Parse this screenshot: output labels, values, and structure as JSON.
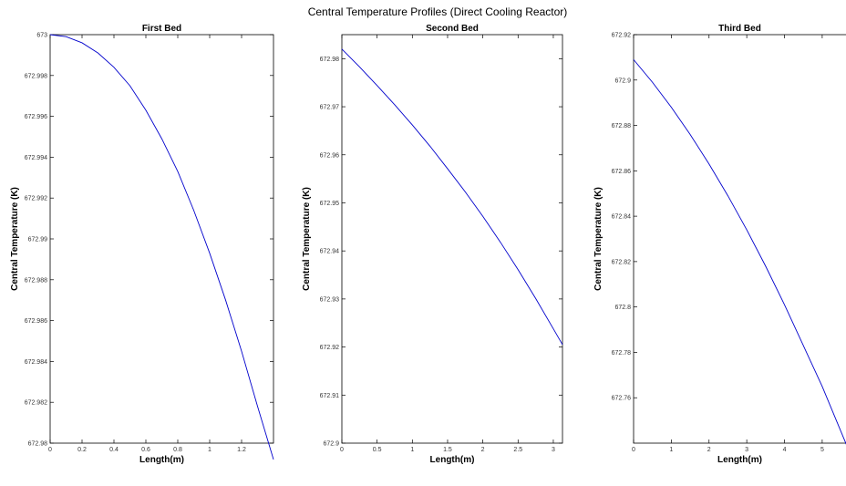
{
  "figure": {
    "title": "Central Temperature Profiles (Direct Cooling Reactor)"
  },
  "chart_data": [
    {
      "type": "line",
      "title": "First Bed",
      "xlabel": "Length(m)",
      "ylabel": "Central Temperature (K)",
      "xlim": [
        0,
        1.4
      ],
      "ylim": [
        672.98,
        673
      ],
      "x_ticks": [
        0,
        0.2,
        0.4,
        0.6,
        0.8,
        1,
        1.2
      ],
      "x_tick_labels": [
        "0",
        "0.2",
        "0.4",
        "0.6",
        "0.8",
        "1",
        "1.2"
      ],
      "y_ticks": [
        672.98,
        672.982,
        672.984,
        672.986,
        672.988,
        672.99,
        672.992,
        672.994,
        672.996,
        672.998,
        673
      ],
      "y_tick_labels": [
        "672.98",
        "672.982",
        "672.984",
        "672.986",
        "672.988",
        "672.99",
        "672.992",
        "672.994",
        "672.996",
        "672.998",
        "673"
      ],
      "grid": false,
      "line_color": "#0000cc",
      "series": [
        {
          "x": [
            0,
            0.1,
            0.2,
            0.3,
            0.4,
            0.5,
            0.6,
            0.7,
            0.8,
            0.9,
            1.0,
            1.1,
            1.2,
            1.3,
            1.4
          ],
          "y": [
            673.0,
            672.9999,
            672.9996,
            672.9991,
            672.9984,
            672.9975,
            672.9963,
            672.9949,
            672.9933,
            672.9914,
            672.9893,
            672.987,
            672.9845,
            672.9818,
            672.9792
          ]
        }
      ]
    },
    {
      "type": "line",
      "title": "Second Bed",
      "xlabel": "Length(m)",
      "ylabel": "Central Temperature (K)",
      "xlim": [
        0,
        3.13
      ],
      "ylim": [
        672.9,
        672.985
      ],
      "x_ticks": [
        0,
        0.5,
        1,
        1.5,
        2,
        2.5,
        3
      ],
      "x_tick_labels": [
        "0",
        "0.5",
        "1",
        "1.5",
        "2",
        "2.5",
        "3"
      ],
      "y_ticks": [
        672.9,
        672.91,
        672.92,
        672.93,
        672.94,
        672.95,
        672.96,
        672.97,
        672.98
      ],
      "y_tick_labels": [
        "672.9",
        "672.91",
        "672.92",
        "672.93",
        "672.94",
        "672.95",
        "672.96",
        "672.97",
        "672.98"
      ],
      "grid": false,
      "line_color": "#0000cc",
      "series": [
        {
          "x": [
            0,
            0.25,
            0.5,
            0.75,
            1.0,
            1.25,
            1.5,
            1.75,
            2.0,
            2.25,
            2.5,
            2.75,
            3.0,
            3.13
          ],
          "y": [
            672.982,
            672.9783,
            672.9744,
            672.9704,
            672.9662,
            672.9618,
            672.9571,
            672.9523,
            672.9472,
            672.9418,
            672.9361,
            672.9301,
            672.9238,
            672.9205
          ]
        }
      ]
    },
    {
      "type": "line",
      "title": "Third Bed",
      "xlabel": "Length(m)",
      "ylabel": "Central Temperature (K)",
      "xlim": [
        0,
        5.8
      ],
      "ylim": [
        672.74,
        672.92
      ],
      "x_ticks": [
        0,
        1,
        2,
        3,
        4,
        5
      ],
      "x_tick_labels": [
        "0",
        "1",
        "2",
        "3",
        "4",
        "5"
      ],
      "y_ticks": [
        672.76,
        672.78,
        672.8,
        672.82,
        672.84,
        672.86,
        672.88,
        672.9,
        672.92
      ],
      "y_tick_labels": [
        "672.76",
        "672.78",
        "672.8",
        "672.82",
        "672.84",
        "672.86",
        "672.88",
        "672.9",
        "672.92"
      ],
      "grid": false,
      "line_color": "#0000cc",
      "series": [
        {
          "x": [
            0,
            0.5,
            1,
            1.5,
            2,
            2.5,
            3,
            3.5,
            4,
            4.5,
            5,
            5.5,
            5.8
          ],
          "y": [
            672.909,
            672.899,
            672.888,
            672.876,
            672.863,
            672.849,
            672.834,
            672.818,
            672.801,
            672.783,
            672.765,
            672.745,
            672.733
          ]
        }
      ]
    }
  ]
}
